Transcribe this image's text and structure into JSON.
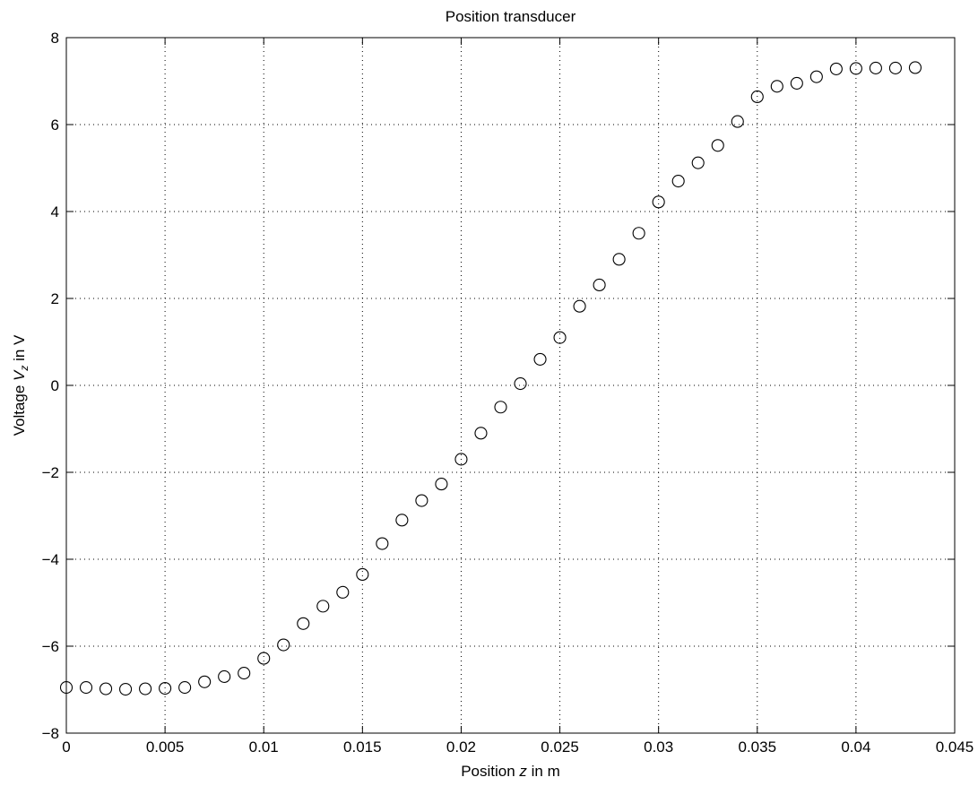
{
  "chart_data": {
    "type": "scatter",
    "title": "Position transducer",
    "xlabel": {
      "pre": "Position ",
      "var": "z",
      "post": " in m"
    },
    "ylabel": {
      "pre": "Voltage ",
      "var": "V",
      "sub": "z",
      "post": " in V"
    },
    "xlim": [
      0,
      0.045
    ],
    "ylim": [
      -8,
      8
    ],
    "xticks": [
      0,
      0.005,
      0.01,
      0.015,
      0.02,
      0.025,
      0.03,
      0.035,
      0.04,
      0.045
    ],
    "xtick_labels": [
      "0",
      "0.005",
      "0.01",
      "0.015",
      "0.02",
      "0.025",
      "0.03",
      "0.035",
      "0.04",
      "0.045"
    ],
    "yticks": [
      -8,
      -6,
      -4,
      -2,
      0,
      2,
      4,
      6,
      8
    ],
    "ytick_labels": [
      "−8",
      "−6",
      "−4",
      "−2",
      "0",
      "2",
      "4",
      "6",
      "8"
    ],
    "grid": true,
    "marker": "circle-open",
    "series": [
      {
        "x": [
          0,
          0.001,
          0.002,
          0.003,
          0.004,
          0.005,
          0.006,
          0.007,
          0.008,
          0.009,
          0.01,
          0.011,
          0.012,
          0.013,
          0.014,
          0.015,
          0.016,
          0.017,
          0.018,
          0.019,
          0.02,
          0.021,
          0.022,
          0.023,
          0.024,
          0.025,
          0.026,
          0.027,
          0.028,
          0.029,
          0.03,
          0.031,
          0.032,
          0.033,
          0.034,
          0.035,
          0.036,
          0.037,
          0.038,
          0.039,
          0.04,
          0.041,
          0.042,
          0.043
        ],
        "y": [
          -6.95,
          -6.95,
          -6.98,
          -6.99,
          -6.98,
          -6.97,
          -6.95,
          -6.82,
          -6.7,
          -6.62,
          -6.28,
          -5.97,
          -5.48,
          -5.08,
          -4.76,
          -4.35,
          -3.64,
          -3.1,
          -2.65,
          -2.27,
          -1.7,
          -1.1,
          -0.5,
          0.04,
          0.6,
          1.1,
          1.82,
          2.31,
          2.9,
          3.5,
          4.22,
          4.7,
          5.12,
          5.52,
          6.07,
          6.64,
          6.88,
          6.95,
          7.1,
          7.28,
          7.29,
          7.3,
          7.3,
          7.31
        ]
      }
    ]
  }
}
